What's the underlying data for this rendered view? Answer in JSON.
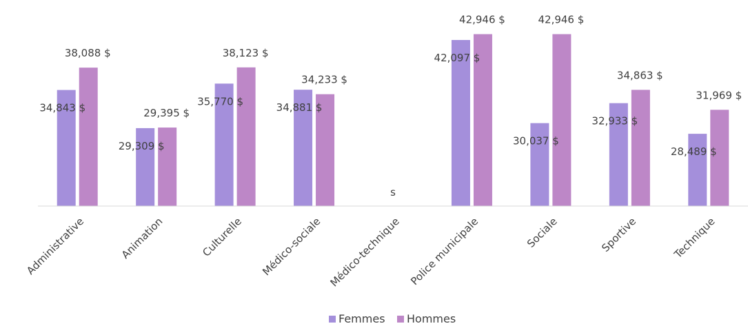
{
  "chart_data": {
    "type": "bar",
    "categories": [
      "Administrative",
      "Animation",
      "Culturelle",
      "Médico-sociale",
      "Médico-technique",
      "Police municipale",
      "Sociale",
      "Sportive",
      "Technique"
    ],
    "series": [
      {
        "name": "Femmes",
        "color": "#a48fdb",
        "values": [
          34843,
          29309,
          35770,
          34881,
          null,
          42097,
          30037,
          32933,
          28489
        ],
        "labels": [
          "34,843 $",
          "29,309 $",
          "35,770 $",
          "34,881 $",
          "s",
          "42,097 $",
          "30,037 $",
          "32,933 $",
          "28,489 $"
        ]
      },
      {
        "name": "Hommes",
        "color": "#bd87c7",
        "values": [
          38088,
          29395,
          38123,
          34233,
          null,
          42946,
          42946,
          34863,
          31969
        ],
        "labels": [
          "38,088 $",
          "29,395 $",
          "38,123 $",
          "34,233 $",
          "",
          "42,946 $",
          "42,946 $",
          "34,863 $",
          "31,969 $"
        ]
      }
    ],
    "title": "",
    "xlabel": "",
    "ylabel": "",
    "ylim": [
      18000,
      44000
    ],
    "grid": false,
    "legend": "bottom"
  }
}
